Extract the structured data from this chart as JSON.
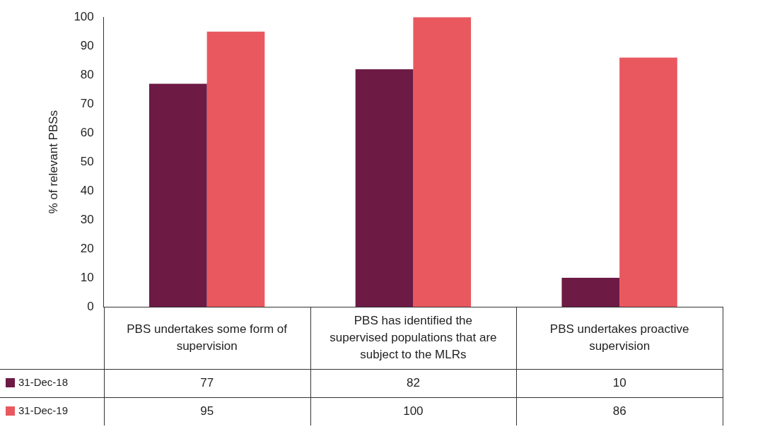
{
  "chart_data": {
    "type": "bar",
    "ylabel": "% of relevant PBSs",
    "categories": [
      "PBS undertakes some form of supervision",
      "PBS has identified the supervised populations that are subject to the MLRs",
      "PBS undertakes proactive supervision"
    ],
    "series": [
      {
        "name": "31-Dec-18",
        "color": "#6d1a45",
        "values": [
          77,
          82,
          10
        ]
      },
      {
        "name": "31-Dec-19",
        "color": "#e9585f",
        "values": [
          95,
          100,
          86
        ]
      }
    ],
    "ylim": [
      0,
      100
    ],
    "yticks": [
      0,
      10,
      20,
      30,
      40,
      50,
      60,
      70,
      80,
      90,
      100
    ],
    "grid": false,
    "legend": "bottom left",
    "data_labels": true
  }
}
